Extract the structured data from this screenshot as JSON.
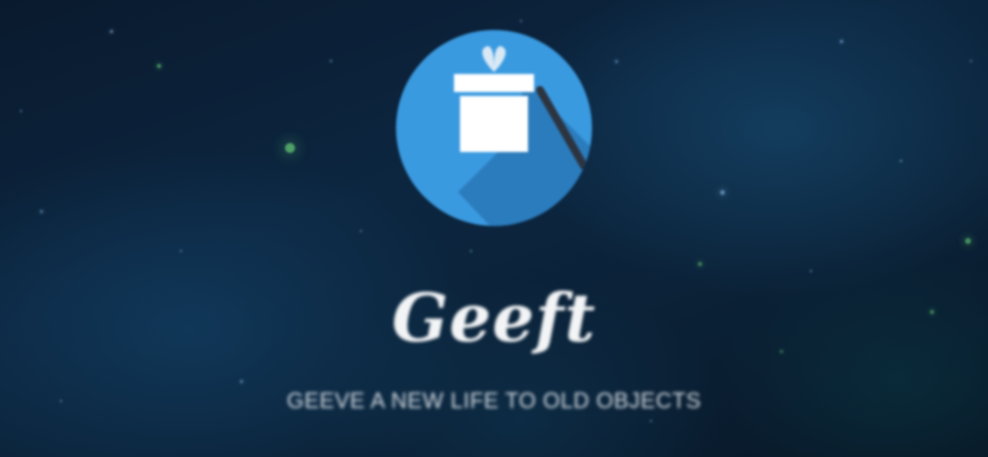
{
  "hero": {
    "brand_name": "Geeft",
    "tagline": "GEEVE A NEW LIFE TO OLD OBJECTS"
  },
  "logo": {
    "icon": "gift-box-icon",
    "circle_color": "#3a9ae0",
    "shadow_color": "#2b7cbd",
    "box_color": "#ffffff",
    "ribbon_color": "#d8e8f5",
    "stick_color": "#2c3440"
  },
  "colors": {
    "background_dark": "#0a1a2e",
    "background_accent": "#0c2640",
    "text": "#f2f4f6",
    "star_green": "#6cd87a",
    "star_blue": "#9fd0ff"
  }
}
